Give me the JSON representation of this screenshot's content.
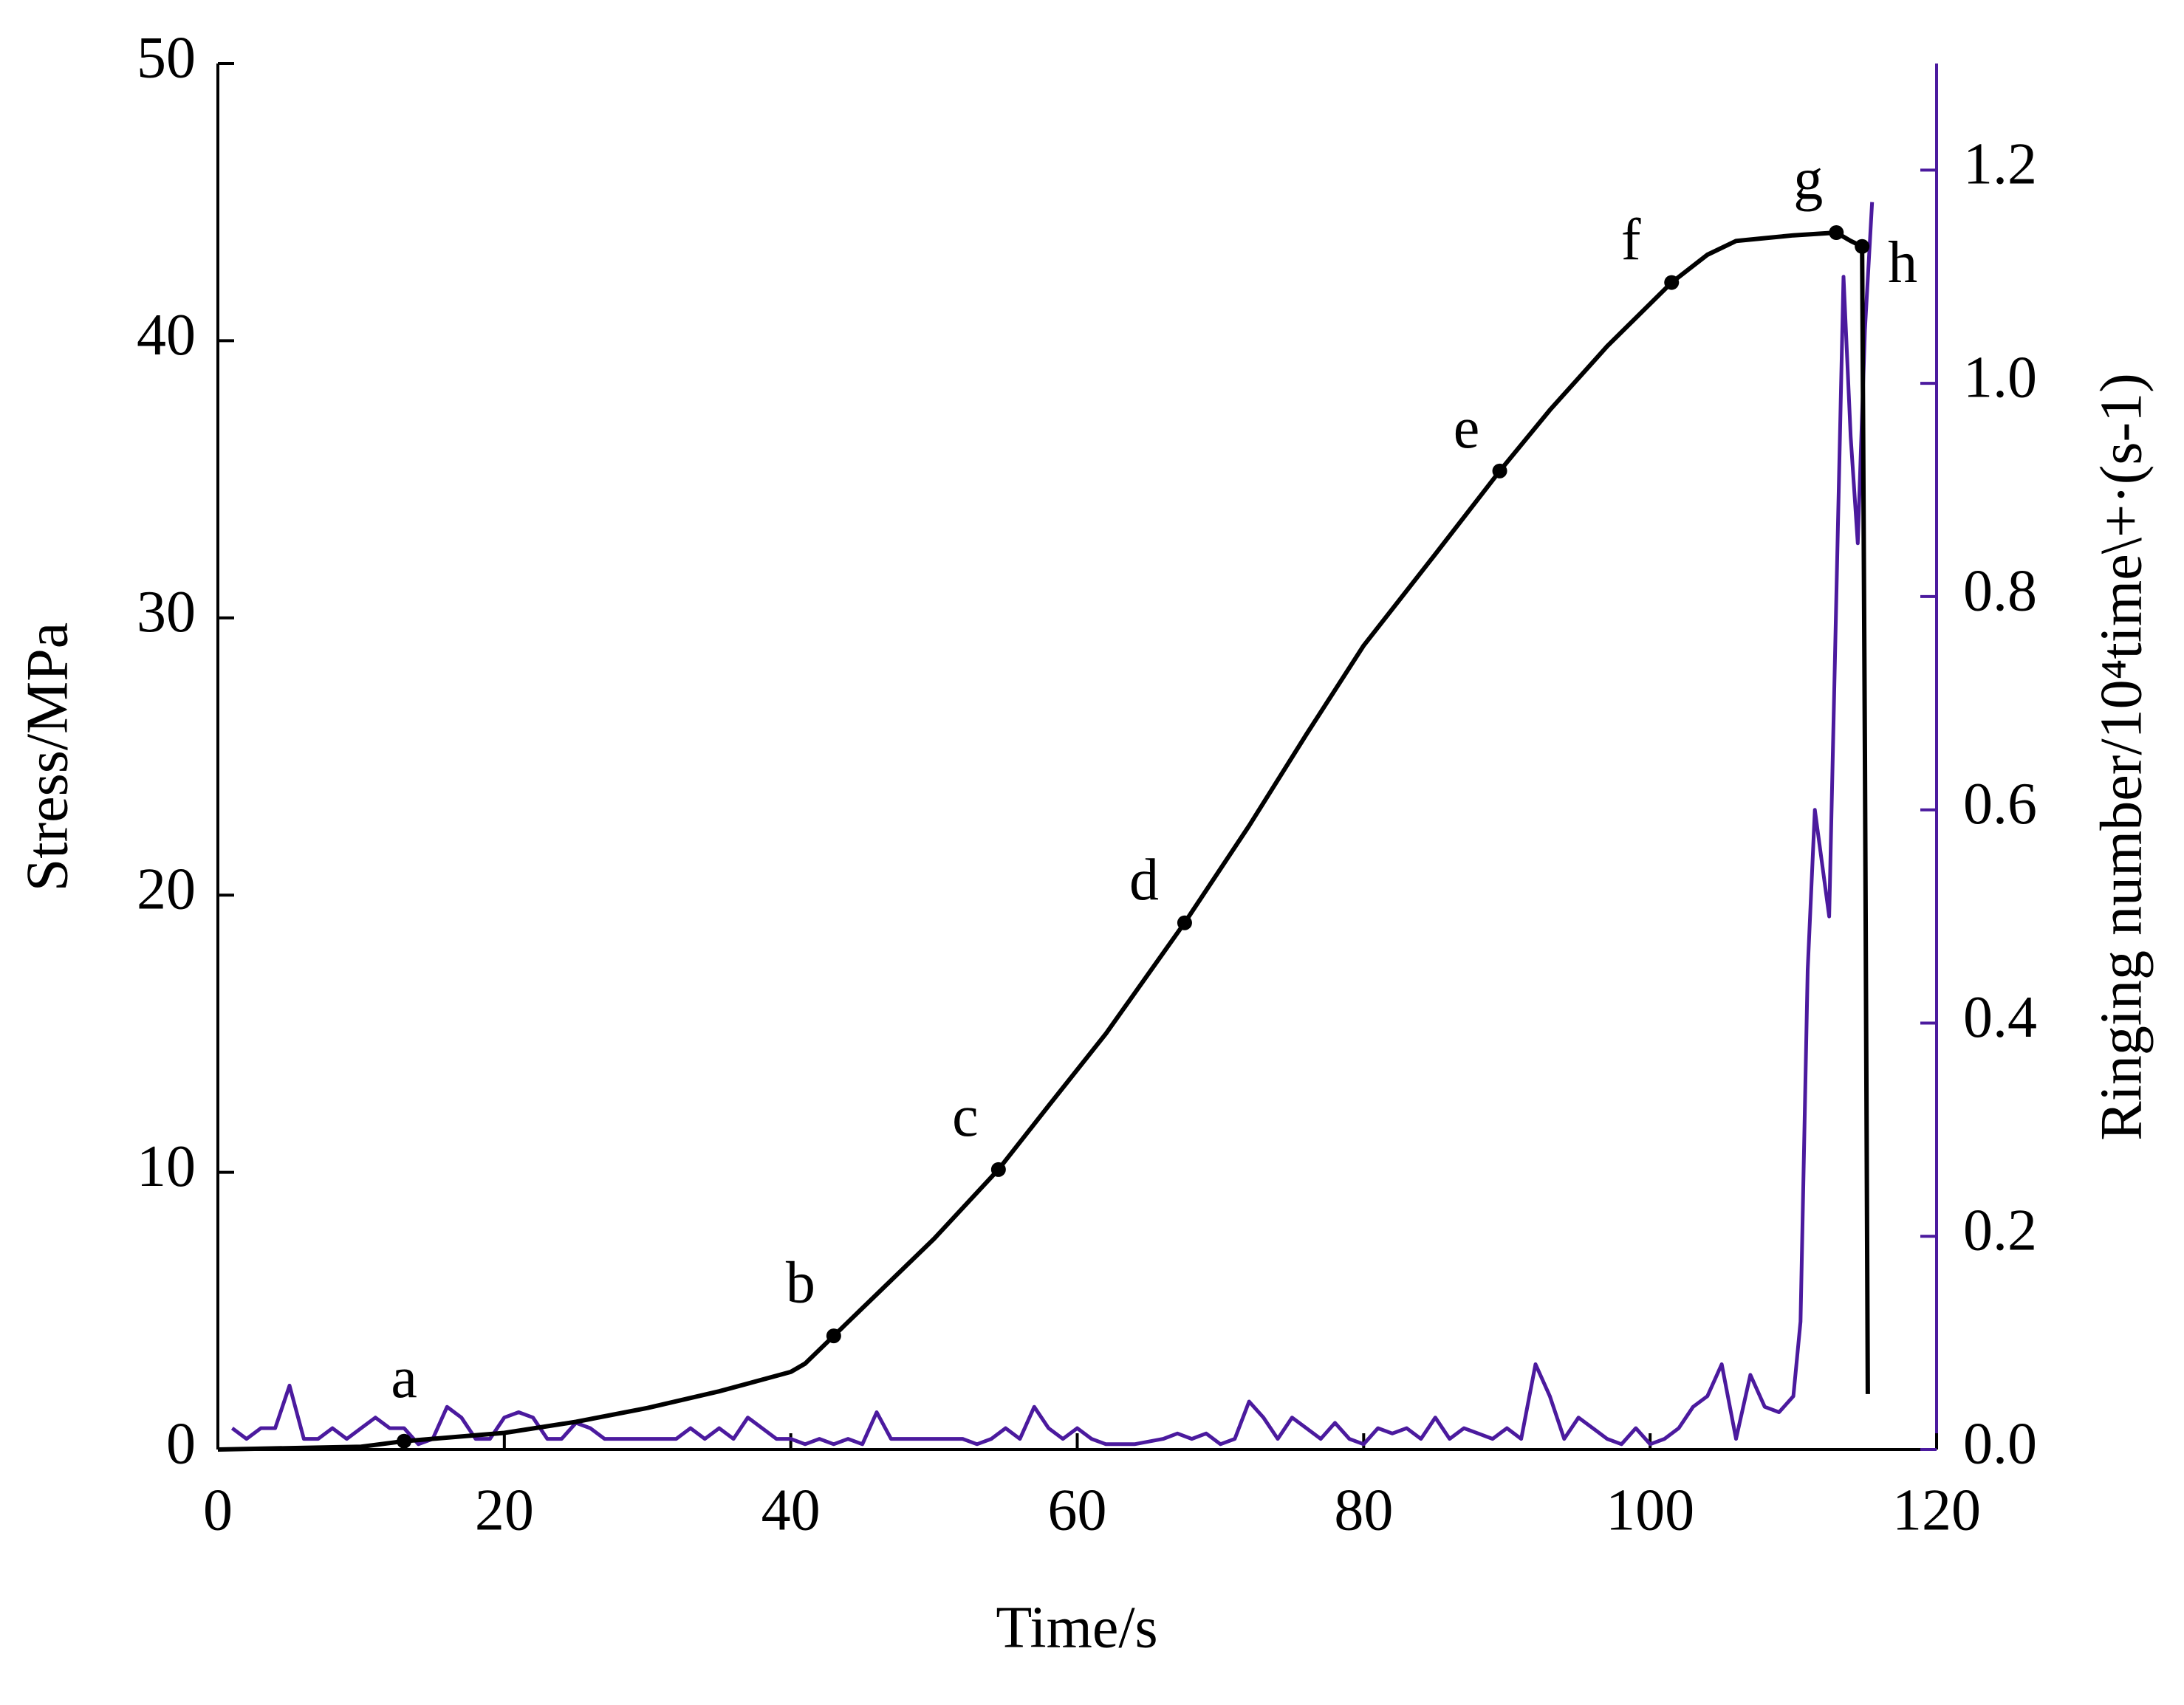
{
  "chart_data": {
    "type": "line",
    "xlabel": "Time/s",
    "ylabel": "Stress/MPa",
    "y2label": "Ringing number/10⁴time\\+·(s-1)",
    "xlim": [
      0,
      120
    ],
    "xticks": [
      0,
      20,
      40,
      60,
      80,
      100,
      120
    ],
    "ylim": [
      0,
      50
    ],
    "yticks": [
      0,
      10,
      20,
      30,
      40,
      50
    ],
    "y2lim": [
      0,
      1.3
    ],
    "y2ticks": [
      {
        "value": 0,
        "label": "0.0"
      },
      0.2,
      0.4,
      0.6,
      0.8,
      {
        "value": 1,
        "label": "1.0"
      },
      1.2
    ],
    "y2color": "#4b1a9e",
    "series": [
      {
        "color": "#000000",
        "x": [
          0,
          10,
          13,
          20,
          25,
          30,
          35,
          40,
          41,
          43,
          46,
          50,
          54.5,
          58,
          62,
          67.5,
          72,
          76,
          80,
          85,
          89.5,
          93,
          97,
          101.5,
          104,
          106,
          108,
          110,
          113,
          114,
          114.8,
          115,
          115.2
        ],
        "values": [
          0,
          0.1,
          0.3,
          0.6,
          1.0,
          1.5,
          2.1,
          2.8,
          3.1,
          4.1,
          5.6,
          7.6,
          10.1,
          12.4,
          15,
          19,
          22.5,
          25.8,
          29,
          32.3,
          35.3,
          37.5,
          39.8,
          42.1,
          43.1,
          43.6,
          43.7,
          43.8,
          43.9,
          43.6,
          43.4,
          25,
          2
        ]
      },
      {
        "color": "#4b1a9e",
        "axis": "y2",
        "x": [
          1,
          2,
          3,
          4,
          5,
          6,
          7,
          8,
          9,
          10,
          11,
          12,
          13,
          14,
          15,
          16,
          17,
          18,
          19,
          20,
          21,
          22,
          23,
          24,
          25,
          26,
          27,
          28,
          30,
          32,
          33,
          34,
          35,
          36,
          37,
          38,
          39,
          40,
          41,
          42,
          43,
          44,
          45,
          46,
          47,
          48,
          50,
          52,
          53,
          54,
          55,
          56,
          57,
          58,
          59,
          60,
          61,
          62,
          64,
          66,
          67,
          68,
          69,
          70,
          71,
          72,
          73,
          74,
          75,
          76,
          77,
          78,
          79,
          80,
          81,
          82,
          83,
          84,
          85,
          86,
          87,
          88,
          89,
          90,
          91,
          92,
          93,
          94,
          95,
          96,
          97,
          98,
          99,
          100,
          101,
          102,
          103,
          104,
          105,
          106,
          107,
          108,
          109,
          110,
          110.5,
          111,
          111.5,
          112,
          112.5,
          113,
          113.5,
          114,
          114.5,
          115,
          115.5
        ],
        "values": [
          0.02,
          0.01,
          0.02,
          0.02,
          0.06,
          0.01,
          0.01,
          0.02,
          0.01,
          0.02,
          0.03,
          0.02,
          0.02,
          0.005,
          0.01,
          0.04,
          0.03,
          0.01,
          0.01,
          0.03,
          0.035,
          0.03,
          0.01,
          0.01,
          0.025,
          0.02,
          0.01,
          0.01,
          0.01,
          0.01,
          0.02,
          0.01,
          0.02,
          0.01,
          0.03,
          0.02,
          0.01,
          0.01,
          0.005,
          0.01,
          0.005,
          0.01,
          0.005,
          0.035,
          0.01,
          0.01,
          0.01,
          0.01,
          0.005,
          0.01,
          0.02,
          0.01,
          0.04,
          0.02,
          0.01,
          0.02,
          0.01,
          0.005,
          0.005,
          0.01,
          0.015,
          0.01,
          0.015,
          0.005,
          0.01,
          0.045,
          0.03,
          0.01,
          0.03,
          0.02,
          0.01,
          0.025,
          0.01,
          0.005,
          0.02,
          0.015,
          0.02,
          0.01,
          0.03,
          0.01,
          0.02,
          0.015,
          0.01,
          0.02,
          0.01,
          0.08,
          0.05,
          0.01,
          0.03,
          0.02,
          0.01,
          0.005,
          0.02,
          0.005,
          0.01,
          0.02,
          0.04,
          0.05,
          0.08,
          0.01,
          0.07,
          0.04,
          0.035,
          0.05,
          0.12,
          0.45,
          0.6,
          0.55,
          0.5,
          0.8,
          1.1,
          0.95,
          0.85,
          1.05,
          1.17
        ]
      }
    ],
    "annotations": [
      {
        "text": "a",
        "x": 13,
        "y": 0.3
      },
      {
        "text": "b",
        "x": 43,
        "y": 4.1
      },
      {
        "text": "c",
        "x": 54.5,
        "y": 10.1
      },
      {
        "text": "d",
        "x": 67.5,
        "y": 19
      },
      {
        "text": "e",
        "x": 89.5,
        "y": 35.3
      },
      {
        "text": "f",
        "x": 101.5,
        "y": 42.1
      },
      {
        "text": "g",
        "x": 113,
        "y": 43.9
      },
      {
        "text": "h",
        "x": 114.8,
        "y": 43.4
      }
    ]
  }
}
